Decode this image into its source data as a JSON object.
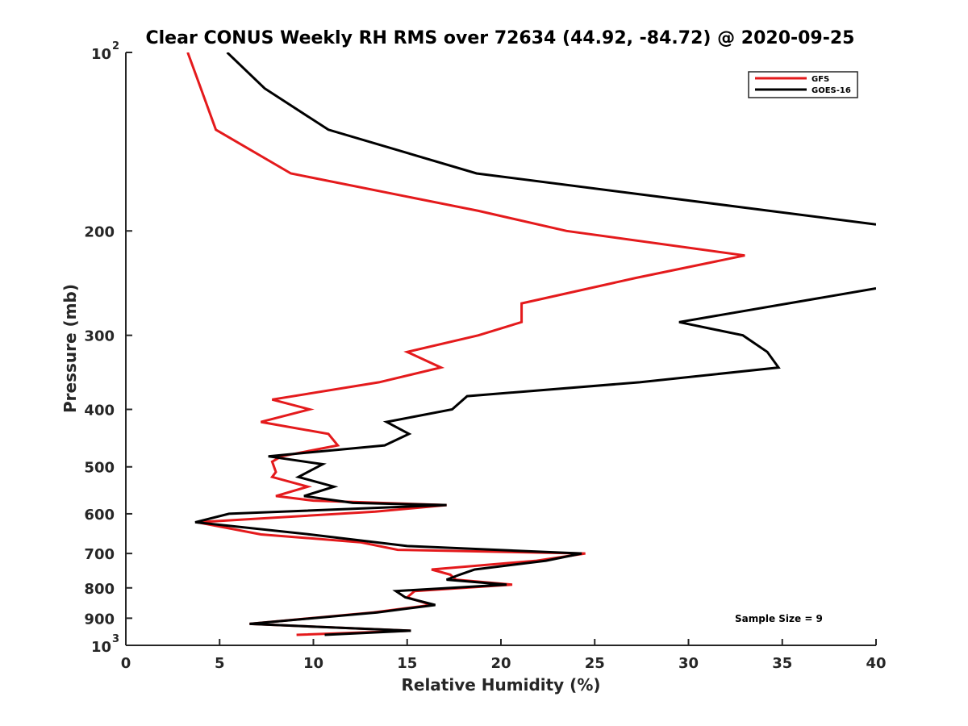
{
  "chart_data": {
    "type": "line",
    "title": "Clear CONUS Weekly RH RMS over 72634 (44.92, -84.72) @ 2020-09-25",
    "xlabel": "Relative Humidity (%)",
    "ylabel": "Pressure (mb)",
    "xlim": [
      0,
      40
    ],
    "ylim": [
      100,
      1000
    ],
    "yscale": "log",
    "y_reversed": true,
    "grid": false,
    "x_ticks": [
      0,
      5,
      10,
      15,
      20,
      25,
      30,
      35,
      40
    ],
    "x_tick_labels": [
      "0",
      "5",
      "10",
      "15",
      "20",
      "25",
      "30",
      "35",
      "40"
    ],
    "y_ticks": [
      100,
      200,
      300,
      400,
      500,
      600,
      700,
      800,
      900,
      1000
    ],
    "y_tick_labels": [
      {
        "base": "10",
        "exp": "2"
      },
      {
        "base": "200"
      },
      {
        "base": "300"
      },
      {
        "base": "400"
      },
      {
        "base": "500"
      },
      {
        "base": "600"
      },
      {
        "base": "700"
      },
      {
        "base": "800"
      },
      {
        "base": "900"
      },
      {
        "base": "10",
        "exp": "3"
      }
    ],
    "legend_position": "top-right",
    "annotation": "Sample Size = 9",
    "series": [
      {
        "name": "GFS",
        "color": "#e41a1c",
        "points": [
          [
            3.3,
            100
          ],
          [
            4.0,
            115
          ],
          [
            4.8,
            135
          ],
          [
            8.8,
            160
          ],
          [
            18.8,
            185
          ],
          [
            23.5,
            200
          ],
          [
            33.0,
            220
          ],
          [
            27.2,
            240
          ],
          [
            21.1,
            265
          ],
          [
            21.1,
            285
          ],
          [
            18.8,
            300
          ],
          [
            15.0,
            320
          ],
          [
            16.8,
            340
          ],
          [
            13.5,
            360
          ],
          [
            7.8,
            385
          ],
          [
            9.8,
            400
          ],
          [
            7.2,
            420
          ],
          [
            10.8,
            440
          ],
          [
            11.3,
            460
          ],
          [
            8.3,
            480
          ],
          [
            7.8,
            490
          ],
          [
            8.0,
            510
          ],
          [
            7.8,
            520
          ],
          [
            9.7,
            540
          ],
          [
            8.0,
            560
          ],
          [
            10.0,
            570
          ],
          [
            17.1,
            580
          ],
          [
            13.3,
            595
          ],
          [
            3.8,
            620
          ],
          [
            7.2,
            650
          ],
          [
            12.5,
            670
          ],
          [
            14.5,
            690
          ],
          [
            24.5,
            700
          ],
          [
            21.9,
            720
          ],
          [
            16.3,
            745
          ],
          [
            17.3,
            760
          ],
          [
            17.6,
            775
          ],
          [
            20.6,
            790
          ],
          [
            15.4,
            810
          ],
          [
            15.0,
            830
          ],
          [
            16.3,
            855
          ],
          [
            13.2,
            880
          ],
          [
            6.6,
            920
          ],
          [
            15.2,
            945
          ],
          [
            9.1,
            960
          ]
        ]
      },
      {
        "name": "GOES-16",
        "color": "#000000",
        "points": [
          [
            5.4,
            100
          ],
          [
            7.4,
            115
          ],
          [
            10.8,
            135
          ],
          [
            18.7,
            160
          ],
          [
            40.0,
            195
          ],
          [
            null,
            205
          ],
          [
            40.0,
            250
          ],
          [
            29.5,
            285
          ],
          [
            32.9,
            300
          ],
          [
            34.2,
            320
          ],
          [
            34.8,
            340
          ],
          [
            27.4,
            360
          ],
          [
            18.2,
            380
          ],
          [
            17.4,
            400
          ],
          [
            13.9,
            420
          ],
          [
            15.1,
            440
          ],
          [
            13.8,
            460
          ],
          [
            7.6,
            480
          ],
          [
            10.5,
            495
          ],
          [
            9.2,
            520
          ],
          [
            11.1,
            540
          ],
          [
            9.5,
            560
          ],
          [
            12.1,
            575
          ],
          [
            17.1,
            580
          ],
          [
            5.5,
            600
          ],
          [
            3.7,
            620
          ],
          [
            9.8,
            650
          ],
          [
            15.0,
            680
          ],
          [
            24.3,
            700
          ],
          [
            22.4,
            720
          ],
          [
            18.6,
            745
          ],
          [
            17.8,
            760
          ],
          [
            17.1,
            775
          ],
          [
            20.3,
            790
          ],
          [
            14.4,
            810
          ],
          [
            14.9,
            830
          ],
          [
            16.5,
            855
          ],
          [
            13.4,
            880
          ],
          [
            6.6,
            920
          ],
          [
            15.2,
            945
          ],
          [
            10.6,
            960
          ]
        ]
      }
    ]
  }
}
